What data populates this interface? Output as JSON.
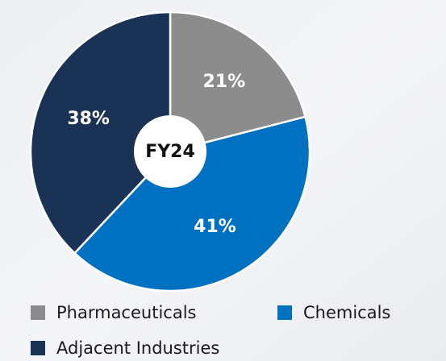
{
  "chart_data": {
    "type": "pie",
    "title": "FY24",
    "categories": [
      "Pharmaceuticals",
      "Chemicals",
      "Adjacent Industries"
    ],
    "values": [
      21,
      41,
      38
    ],
    "value_labels": [
      "21%",
      "41%",
      "38%"
    ],
    "colors": [
      "#8c8c8c",
      "#0070c0",
      "#1b3257"
    ],
    "legend": "bottom"
  }
}
